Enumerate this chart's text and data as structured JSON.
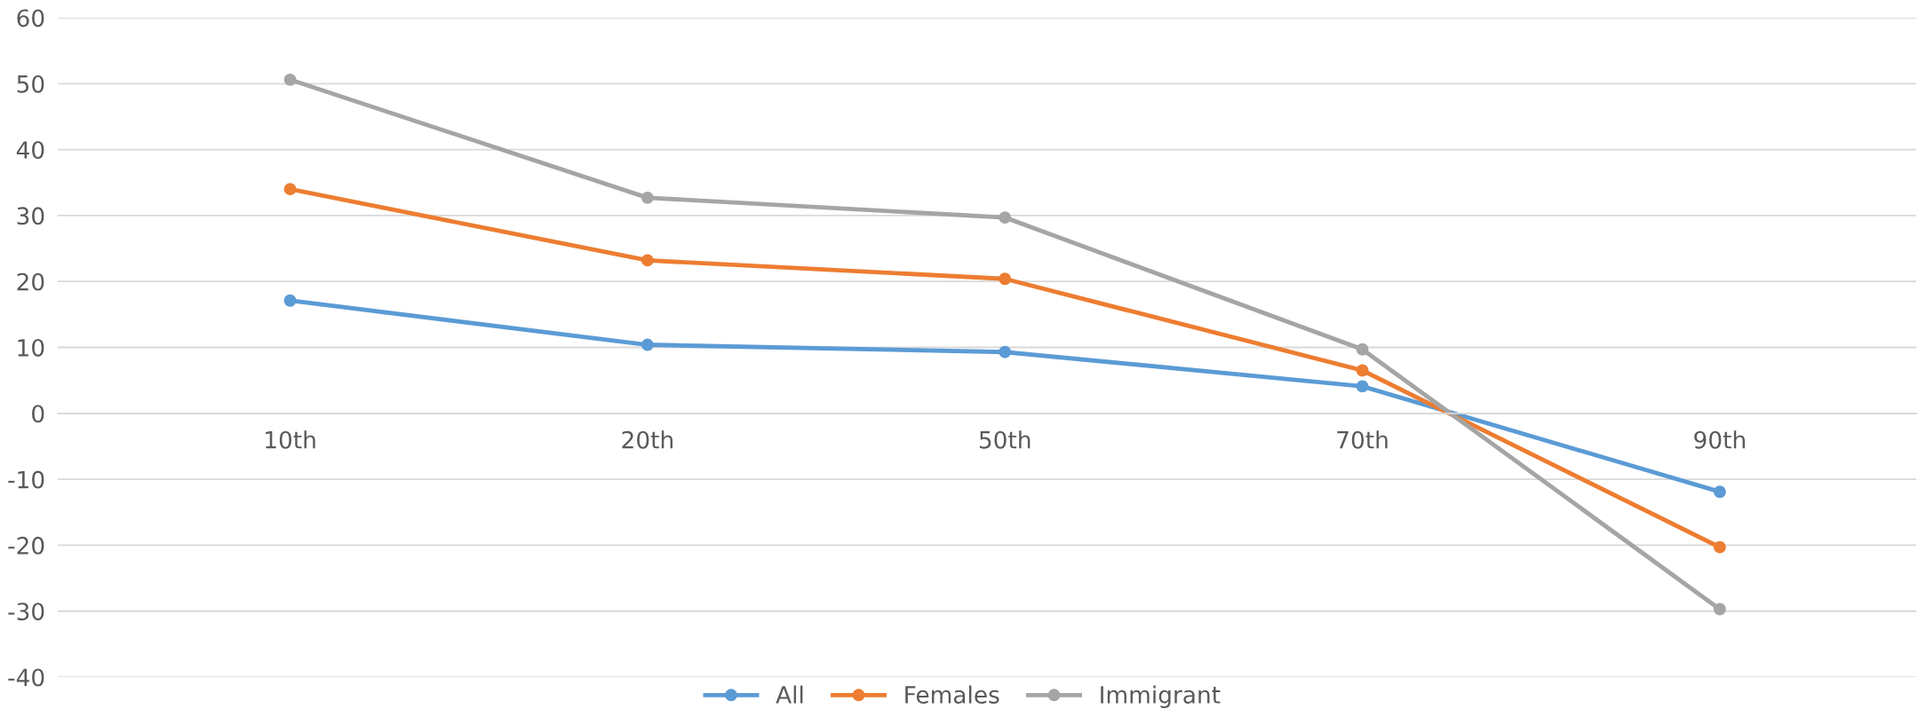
{
  "chart_data": {
    "type": "line",
    "categories": [
      "10th",
      "20th",
      "50th",
      "70th",
      "90th"
    ],
    "series": [
      {
        "name": "All",
        "color": "#5b9bd5",
        "values": [
          17.1,
          10.4,
          9.3,
          4.1,
          -11.9
        ]
      },
      {
        "name": "Females",
        "color": "#ed7d31",
        "values": [
          34.0,
          23.2,
          20.4,
          6.5,
          -20.3
        ]
      },
      {
        "name": "Immigrant",
        "color": "#a5a5a5",
        "values": [
          50.6,
          32.7,
          29.7,
          9.7,
          -29.7
        ]
      }
    ],
    "ylim": [
      -40,
      60
    ],
    "yticks": [
      -40,
      -30,
      -20,
      -10,
      0,
      10,
      20,
      30,
      40,
      50,
      60
    ],
    "grid": "y",
    "legend": "bottom",
    "marker": "circle",
    "line_style": "solid"
  }
}
